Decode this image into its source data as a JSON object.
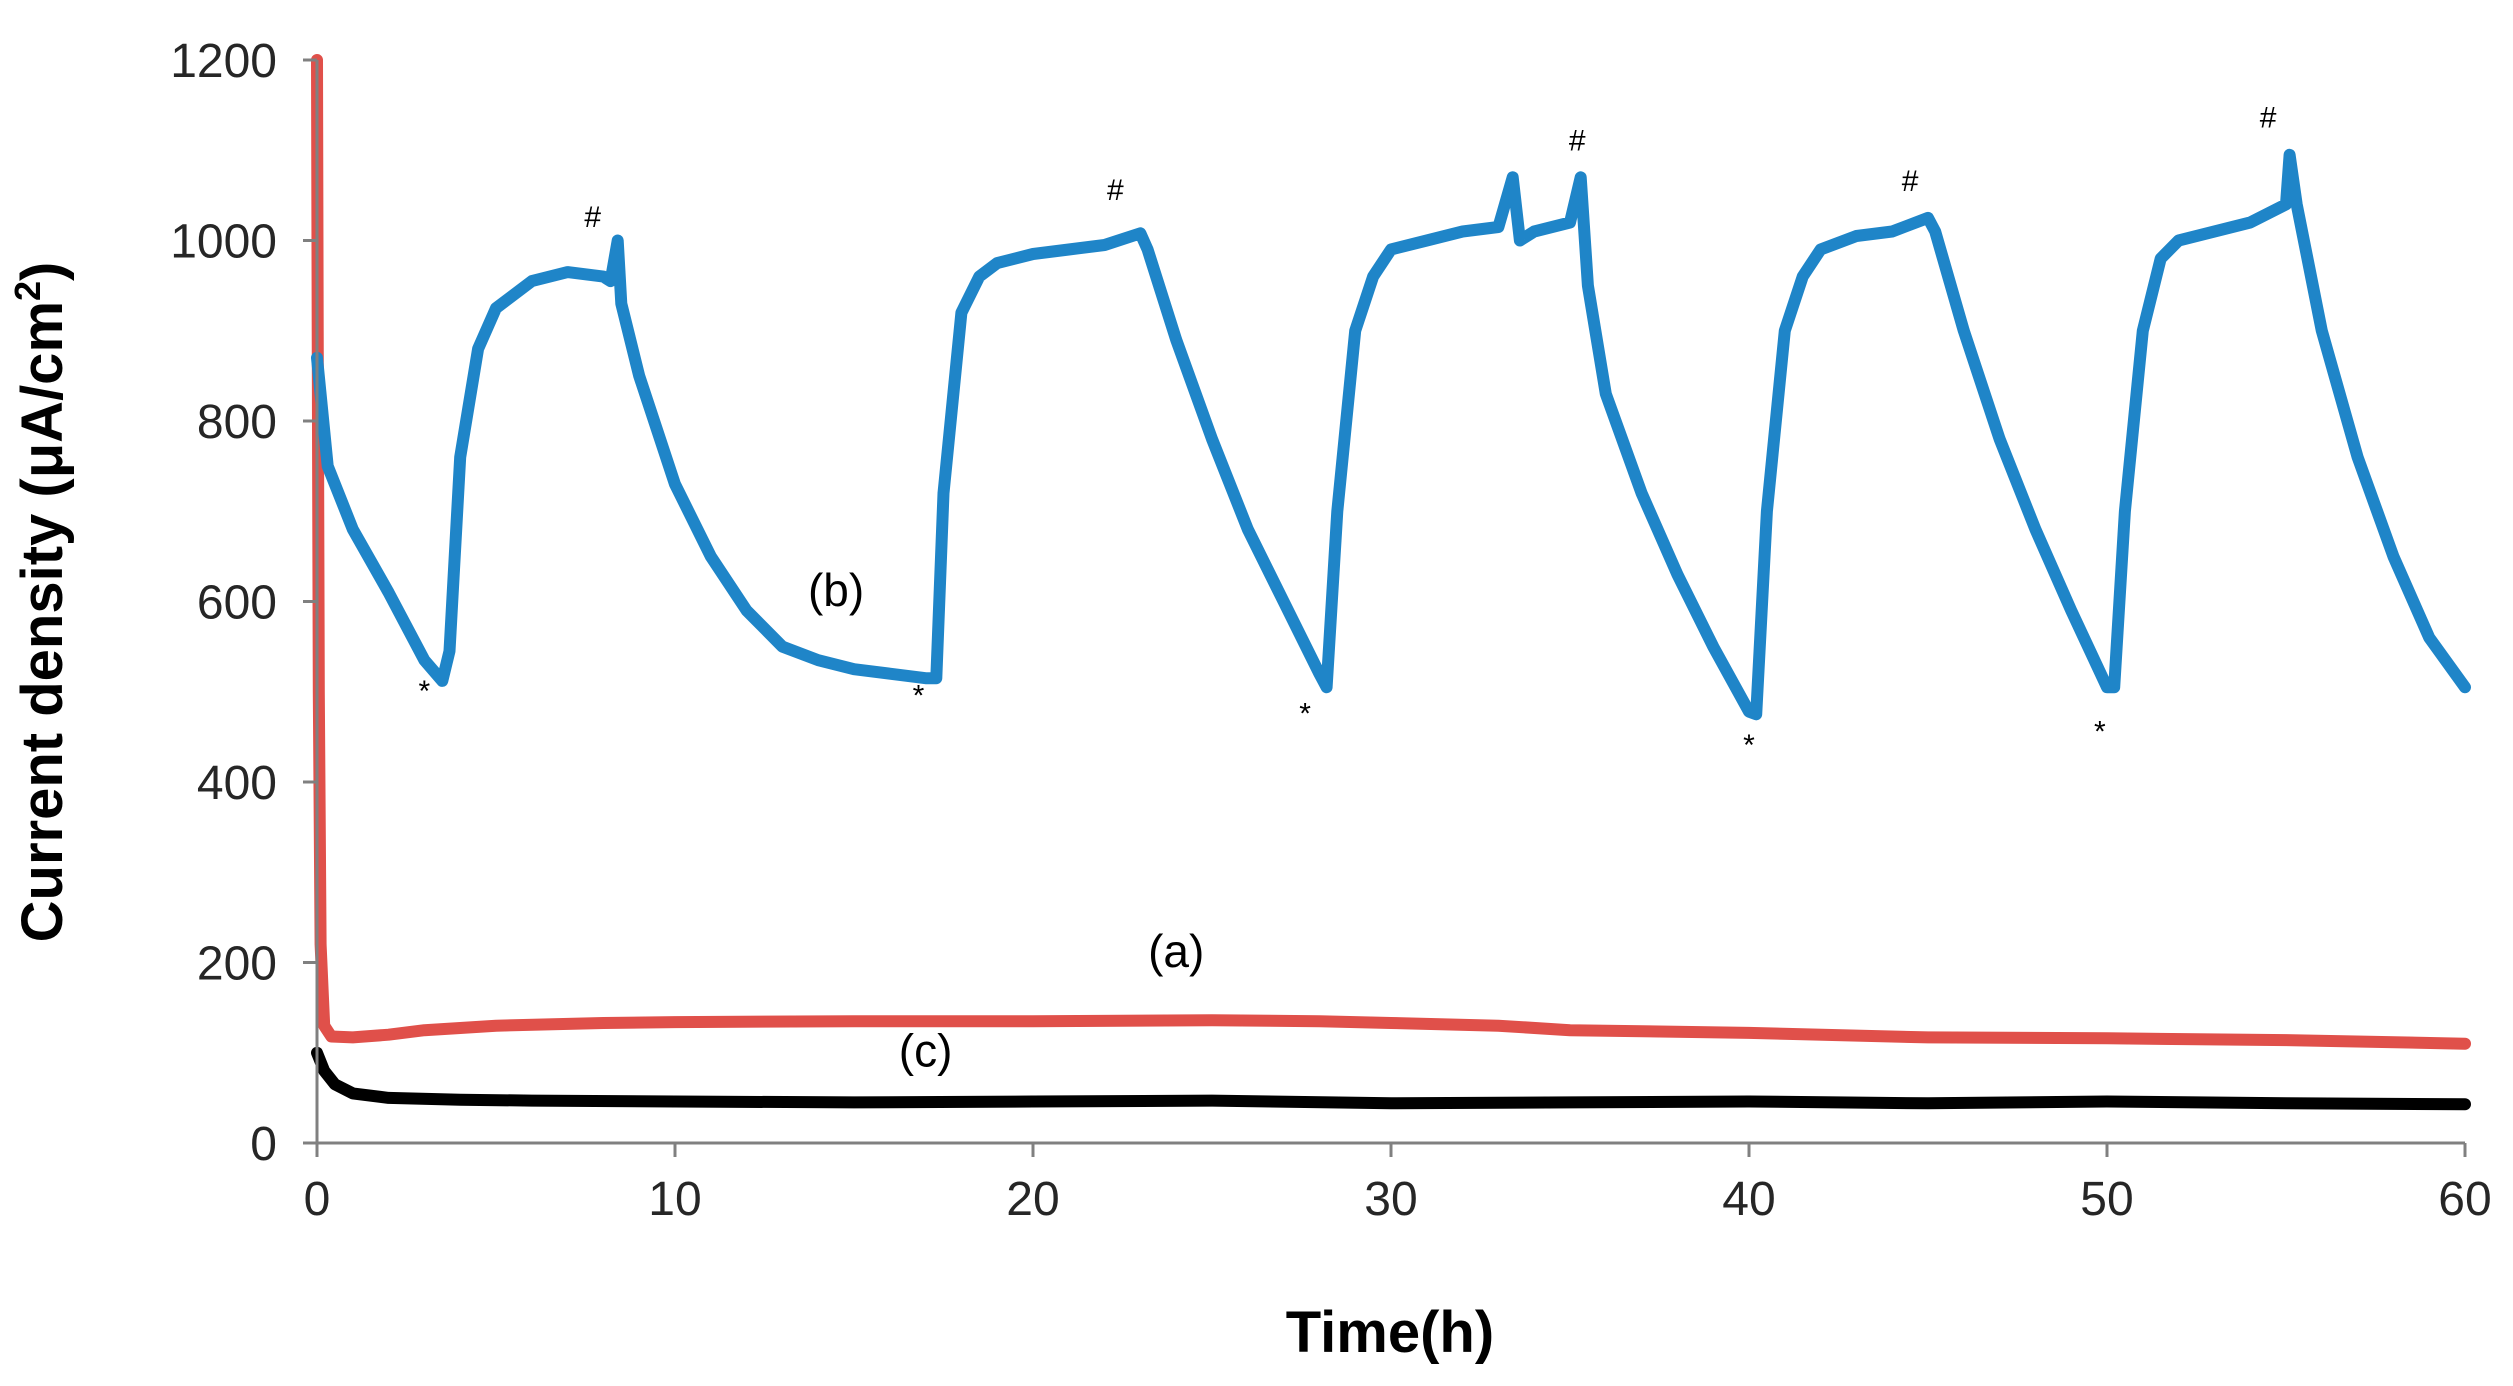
{
  "chart_data": {
    "type": "line",
    "title": "",
    "xlabel": "Time(h)",
    "ylabel_main": "Current density (μA/cm",
    "ylabel_sup": "2",
    "ylabel_close": ")",
    "xlim": [
      0,
      60
    ],
    "ylim": [
      0,
      1200
    ],
    "xticks": [
      0,
      10,
      20,
      30,
      40,
      50,
      60
    ],
    "yticks": [
      0,
      200,
      400,
      600,
      800,
      1000,
      1200
    ],
    "grid": false,
    "series": [
      {
        "name": "(a)",
        "color": "#e0504a",
        "label_at": [
          24,
          195
        ],
        "points": [
          [
            0,
            1200
          ],
          [
            0.02,
            900
          ],
          [
            0.05,
            500
          ],
          [
            0.1,
            220
          ],
          [
            0.2,
            130
          ],
          [
            0.4,
            118
          ],
          [
            1,
            117
          ],
          [
            2,
            120
          ],
          [
            3,
            125
          ],
          [
            5,
            130
          ],
          [
            8,
            133
          ],
          [
            10,
            134
          ],
          [
            15,
            135
          ],
          [
            20,
            135
          ],
          [
            25,
            136
          ],
          [
            28,
            135
          ],
          [
            30,
            133
          ],
          [
            33,
            130
          ],
          [
            35,
            125
          ],
          [
            40,
            122
          ],
          [
            45,
            117
          ],
          [
            50,
            116
          ],
          [
            55,
            114
          ],
          [
            60,
            110
          ]
        ]
      },
      {
        "name": "(b)",
        "color": "#1f85c8",
        "label_at": [
          14.5,
          595
        ],
        "points": [
          [
            0,
            870
          ],
          [
            0.3,
            750
          ],
          [
            1,
            680
          ],
          [
            2,
            610
          ],
          [
            3,
            535
          ],
          [
            3.5,
            512
          ],
          [
            3.7,
            545
          ],
          [
            4,
            760
          ],
          [
            4.5,
            880
          ],
          [
            5,
            925
          ],
          [
            6,
            955
          ],
          [
            7,
            965
          ],
          [
            8,
            960
          ],
          [
            8.2,
            955
          ],
          [
            8.4,
            1000
          ],
          [
            8.5,
            930
          ],
          [
            9,
            850
          ],
          [
            10,
            730
          ],
          [
            11,
            650
          ],
          [
            12,
            590
          ],
          [
            13,
            550
          ],
          [
            14,
            535
          ],
          [
            15,
            525
          ],
          [
            16,
            520
          ],
          [
            17,
            515
          ],
          [
            17.3,
            515
          ],
          [
            17.5,
            720
          ],
          [
            18,
            920
          ],
          [
            18.5,
            960
          ],
          [
            19,
            975
          ],
          [
            20,
            985
          ],
          [
            21,
            990
          ],
          [
            22,
            995
          ],
          [
            23,
            1008
          ],
          [
            23.2,
            990
          ],
          [
            24,
            890
          ],
          [
            25,
            780
          ],
          [
            26,
            680
          ],
          [
            27,
            600
          ],
          [
            28,
            520
          ],
          [
            28.2,
            505
          ],
          [
            28.5,
            700
          ],
          [
            29,
            900
          ],
          [
            29.5,
            960
          ],
          [
            30,
            990
          ],
          [
            31,
            1000
          ],
          [
            32,
            1010
          ],
          [
            33,
            1015
          ],
          [
            33.4,
            1070
          ],
          [
            33.6,
            1000
          ],
          [
            34,
            1010
          ],
          [
            35,
            1020
          ],
          [
            35.3,
            1070
          ],
          [
            35.5,
            950
          ],
          [
            36,
            830
          ],
          [
            37,
            720
          ],
          [
            38,
            630
          ],
          [
            39,
            550
          ],
          [
            40,
            478
          ],
          [
            40.2,
            475
          ],
          [
            40.5,
            700
          ],
          [
            41,
            900
          ],
          [
            41.5,
            960
          ],
          [
            42,
            990
          ],
          [
            43,
            1005
          ],
          [
            44,
            1010
          ],
          [
            45,
            1025
          ],
          [
            45.2,
            1010
          ],
          [
            46,
            900
          ],
          [
            47,
            780
          ],
          [
            48,
            680
          ],
          [
            49,
            590
          ],
          [
            50,
            505
          ],
          [
            50.2,
            505
          ],
          [
            50.5,
            700
          ],
          [
            51,
            900
          ],
          [
            51.5,
            980
          ],
          [
            52,
            1000
          ],
          [
            53,
            1010
          ],
          [
            54,
            1020
          ],
          [
            55,
            1040
          ],
          [
            55.1,
            1095
          ],
          [
            55.3,
            1040
          ],
          [
            56,
            900
          ],
          [
            57,
            760
          ],
          [
            58,
            650
          ],
          [
            59,
            560
          ],
          [
            60,
            505
          ]
        ]
      },
      {
        "name": "(c)",
        "color": "#000000",
        "label_at": [
          17,
          85
        ],
        "points": [
          [
            0,
            100
          ],
          [
            0.2,
            80
          ],
          [
            0.5,
            65
          ],
          [
            1,
            55
          ],
          [
            2,
            50
          ],
          [
            4,
            48
          ],
          [
            6,
            47
          ],
          [
            10,
            46
          ],
          [
            15,
            45
          ],
          [
            20,
            46
          ],
          [
            25,
            47
          ],
          [
            30,
            44
          ],
          [
            35,
            45
          ],
          [
            40,
            46
          ],
          [
            45,
            44
          ],
          [
            50,
            46
          ],
          [
            55,
            44
          ],
          [
            60,
            43
          ]
        ]
      }
    ],
    "annotations": [
      {
        "text": "*",
        "x": 3.0,
        "y": 490
      },
      {
        "text": "#",
        "x": 7.7,
        "y": 1015
      },
      {
        "text": "*",
        "x": 16.8,
        "y": 485
      },
      {
        "text": "#",
        "x": 22.3,
        "y": 1045
      },
      {
        "text": "*",
        "x": 27.6,
        "y": 465
      },
      {
        "text": "#",
        "x": 35.2,
        "y": 1100
      },
      {
        "text": "*",
        "x": 40.0,
        "y": 430
      },
      {
        "text": "#",
        "x": 44.5,
        "y": 1055
      },
      {
        "text": "*",
        "x": 49.8,
        "y": 445
      },
      {
        "text": "#",
        "x": 54.5,
        "y": 1125
      }
    ]
  }
}
